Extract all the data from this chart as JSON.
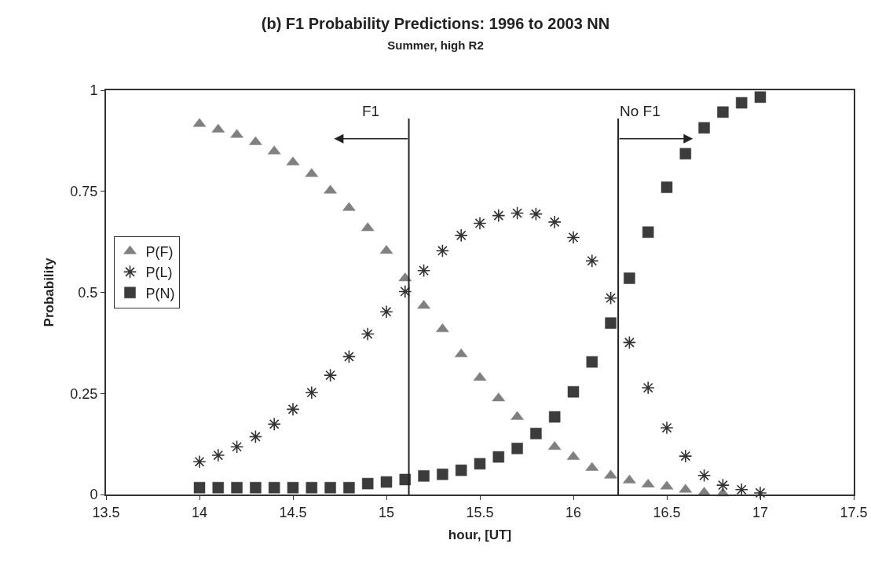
{
  "chart_data": {
    "type": "scatter",
    "title": "(b) F1 Probability Predictions: 1996 to 2003 NN",
    "subtitle": "Summer, high R2",
    "xlabel": "hour, [UT]",
    "ylabel": "Probability",
    "x": [
      14,
      14.1,
      14.2,
      14.3,
      14.4,
      14.5,
      14.6,
      14.7,
      14.8,
      14.9,
      15,
      15.1,
      15.2,
      15.3,
      15.4,
      15.5,
      15.6,
      15.7,
      15.8,
      15.9,
      16,
      16.1,
      16.2,
      16.3,
      16.4,
      16.5,
      16.6,
      16.7,
      16.8,
      16.9,
      17
    ],
    "series": [
      {
        "name": "P(F)",
        "color": "#808080",
        "marker": "triangle",
        "values": [
          0.917,
          0.903,
          0.89,
          0.872,
          0.849,
          0.822,
          0.793,
          0.752,
          0.709,
          0.659,
          0.603,
          0.535,
          0.467,
          0.409,
          0.347,
          0.289,
          0.238,
          0.192,
          null,
          0.118,
          0.093,
          0.066,
          0.047,
          0.035,
          0.025,
          0.02,
          0.012,
          0.005,
          0.003,
          null,
          null
        ]
      },
      {
        "name": "P(L)",
        "color": "#333333",
        "marker": "cross",
        "values": [
          0.081,
          0.097,
          0.118,
          0.143,
          0.174,
          0.211,
          0.252,
          0.295,
          0.341,
          0.397,
          0.452,
          0.502,
          0.554,
          0.603,
          0.641,
          0.671,
          0.69,
          0.696,
          0.694,
          0.674,
          0.636,
          0.578,
          0.486,
          0.376,
          0.264,
          0.165,
          0.095,
          0.047,
          0.023,
          0.012,
          0.004
        ]
      },
      {
        "name": "P(N)",
        "color": "#3c3c3c",
        "marker": "square",
        "values": [
          0.017,
          0.017,
          0.017,
          0.017,
          0.017,
          0.017,
          0.017,
          0.017,
          0.017,
          0.027,
          0.031,
          0.037,
          0.046,
          0.05,
          0.06,
          0.076,
          0.093,
          0.114,
          0.151,
          0.192,
          0.254,
          0.328,
          0.424,
          0.535,
          0.649,
          0.76,
          0.843,
          0.907,
          0.946,
          0.969,
          0.983
        ]
      }
    ],
    "xlim": [
      13.5,
      17.5
    ],
    "xticks": [
      13.5,
      14,
      14.5,
      15,
      15.5,
      16,
      16.5,
      17,
      17.5
    ],
    "ylim": [
      0,
      1
    ],
    "yticks": [
      0,
      0.25,
      0.5,
      0.75,
      1
    ],
    "grid": false,
    "legend": "left",
    "ref_lines": [
      {
        "axis": "x",
        "value": 15.12,
        "label": "F1",
        "color": "#222222"
      },
      {
        "axis": "x",
        "value": 16.24,
        "label": "No F1",
        "color": "#222222"
      }
    ]
  }
}
